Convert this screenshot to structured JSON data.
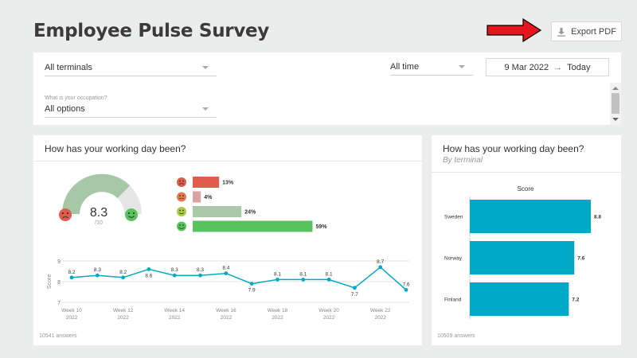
{
  "header": {
    "title": "Employee Pulse Survey",
    "export_label": "Export PDF"
  },
  "filters": {
    "terminal_select": "All terminals",
    "time_select": "All time",
    "date_from": "9 Mar 2022",
    "date_arrow": "→",
    "date_to": "Today",
    "occupation_label": "What is your occupation?",
    "occupation_select": "All options"
  },
  "left_card": {
    "title": "How has your working day been?",
    "gauge_score": "8.3",
    "gauge_max": "/10",
    "footnote": "10541 answers"
  },
  "right_card": {
    "title": "How has your working day been?",
    "subtitle": "By terminal",
    "footnote": "10509 answers"
  },
  "colors": {
    "teal": "#00a9c5",
    "gauge_green": "#a6c8a6",
    "very_bad": "#e05c4d",
    "bad": "#d9a3a3",
    "good": "#a9c9a9",
    "very_good": "#56c45b"
  },
  "chart_data": [
    {
      "type": "bar",
      "orientation": "horizontal",
      "categories": [
        "very-bad",
        "bad",
        "good",
        "very-good"
      ],
      "values": [
        13,
        4,
        24,
        59
      ],
      "value_labels": [
        "13%",
        "4%",
        "24%",
        "59%"
      ],
      "icons": [
        "very-sad-face-icon",
        "sad-face-icon",
        "smiling-face-icon",
        "happy-face-icon"
      ],
      "xlim": [
        0,
        100
      ]
    },
    {
      "type": "line",
      "x": [
        "Week 10",
        "Week 11",
        "Week 12",
        "Week 13",
        "Week 14",
        "Week 15",
        "Week 16",
        "Week 17",
        "Week 18",
        "Week 19",
        "Week 20",
        "Week 21",
        "Week 22",
        "Week 23"
      ],
      "x_tick_labels": [
        [
          "Week 10",
          "2022"
        ],
        [
          "Week 12",
          "2022"
        ],
        [
          "Week 14",
          "2022"
        ],
        [
          "Week 16",
          "2022"
        ],
        [
          "Week 18",
          "2022"
        ],
        [
          "Week 20",
          "2022"
        ],
        [
          "Week 22",
          "2022"
        ]
      ],
      "values": [
        8.2,
        8.3,
        8.2,
        8.6,
        8.3,
        8.3,
        8.4,
        7.9,
        8.1,
        8.1,
        8.1,
        7.7,
        8.7,
        7.6
      ],
      "value_labels": [
        "8.2",
        "8.3",
        "8.2",
        "8.6",
        "8.3",
        "8.3",
        "8.4",
        "7.9",
        "8.1",
        "8.1",
        "8.1",
        "7.7",
        "8.7",
        "7.6"
      ],
      "ylabel": "Score",
      "y_ticks": [
        7,
        8,
        9
      ],
      "ylim": [
        7,
        9
      ]
    },
    {
      "type": "bar",
      "orientation": "horizontal",
      "title": "Score",
      "categories": [
        "Sweden",
        "Norway",
        "Finland"
      ],
      "values": [
        8.8,
        7.6,
        7.2
      ],
      "xlim": [
        0,
        10
      ]
    }
  ]
}
